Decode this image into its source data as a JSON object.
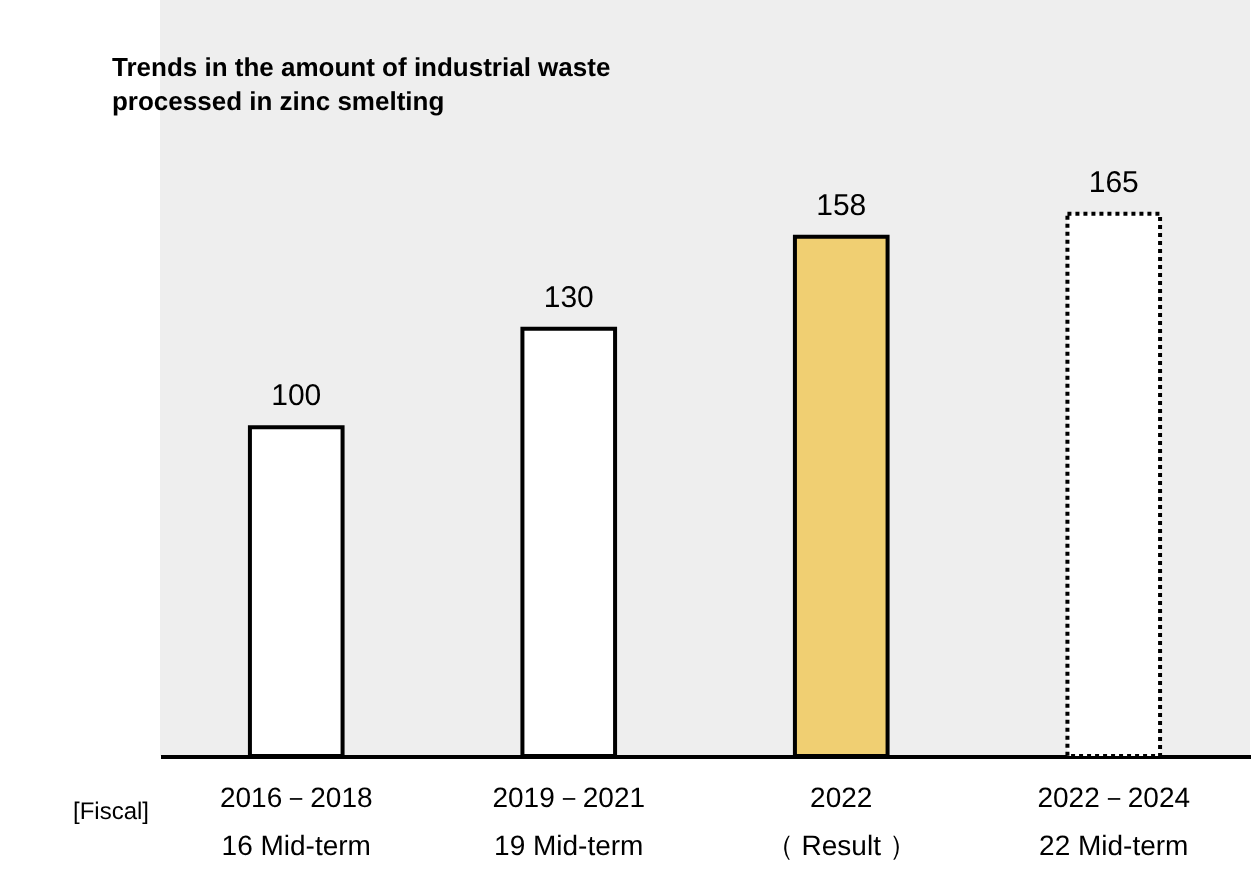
{
  "chart_data": {
    "type": "bar",
    "title": [
      "Trends in the amount of industrial waste",
      "processed in zinc smelting"
    ],
    "xlabel": "[Fiscal]",
    "categories": [
      "2016－2018\n16 Mid-term",
      "2019－2021\n19 Mid-term",
      "2022\n（ Result ）",
      "2022－2024\n22 Mid-term"
    ],
    "series": [
      {
        "values": [
          100,
          130,
          158,
          null
        ],
        "colors": [
          "#ffffff",
          "#ffffff",
          "#f0cf72",
          null
        ],
        "line_style": "solid"
      },
      {
        "values": [
          null,
          null,
          null,
          165
        ],
        "color": "#ffffff",
        "line_style": "dotted"
      }
    ],
    "ylim": [
      0,
      230
    ],
    "data_labels": true
  }
}
